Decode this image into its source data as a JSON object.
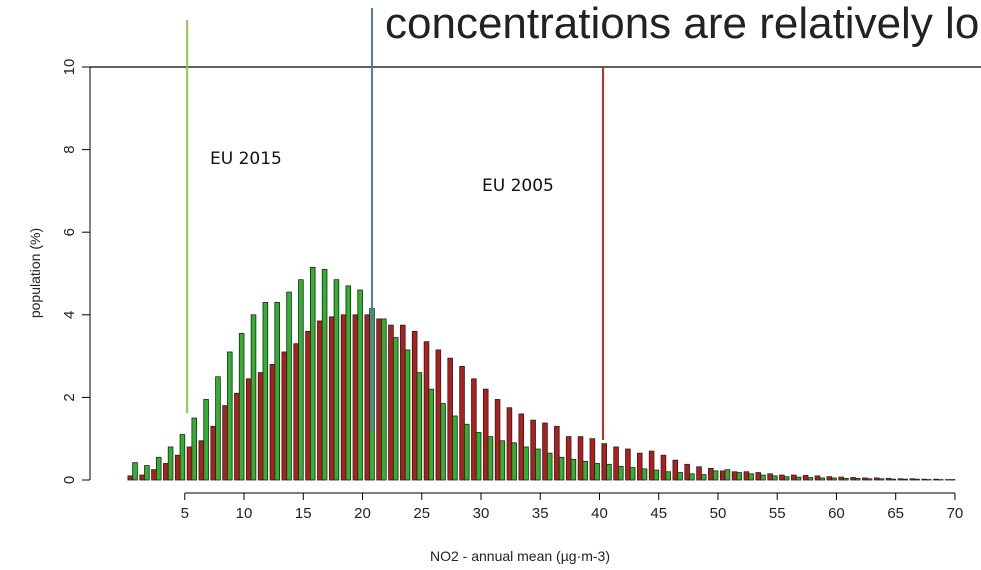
{
  "chart_data": {
    "type": "bar",
    "title": "concentrations are relatively lo",
    "x_label": "NO2 - annual mean (µg·m-3)",
    "y_label": "population (%)",
    "annotations": [
      "EU 2015",
      "EU 2005"
    ],
    "x": [
      1,
      2,
      3,
      4,
      5,
      6,
      7,
      8,
      9,
      10,
      11,
      12,
      13,
      14,
      15,
      16,
      17,
      18,
      19,
      20,
      21,
      22,
      23,
      24,
      25,
      26,
      27,
      28,
      29,
      30,
      31,
      32,
      33,
      34,
      35,
      36,
      37,
      38,
      39,
      40,
      41,
      42,
      43,
      44,
      45,
      46,
      47,
      48,
      49,
      50,
      51,
      52,
      53,
      54,
      55,
      56,
      57,
      58,
      59,
      60,
      61,
      62,
      63,
      64,
      65,
      66,
      67,
      68,
      69,
      70
    ],
    "series": [
      {
        "color": "#b21d1d",
        "values": [
          0.1,
          0.12,
          0.25,
          0.4,
          0.6,
          0.8,
          0.95,
          1.3,
          1.8,
          2.1,
          2.45,
          2.6,
          2.8,
          3.1,
          3.3,
          3.6,
          3.85,
          3.95,
          4.0,
          4.0,
          4.0,
          3.9,
          3.75,
          3.75,
          3.6,
          3.35,
          3.15,
          2.95,
          2.75,
          2.45,
          2.2,
          1.95,
          1.75,
          1.6,
          1.45,
          1.38,
          1.3,
          1.05,
          1.05,
          1.0,
          0.88,
          0.8,
          0.75,
          0.65,
          0.7,
          0.6,
          0.48,
          0.38,
          0.32,
          0.28,
          0.22,
          0.2,
          0.2,
          0.18,
          0.15,
          0.12,
          0.12,
          0.11,
          0.1,
          0.08,
          0.07,
          0.06,
          0.05,
          0.05,
          0.04,
          0.03,
          0.03,
          0.02,
          0.02,
          0.01
        ]
      },
      {
        "color": "#2fb32f",
        "values": [
          0.42,
          0.35,
          0.55,
          0.8,
          1.1,
          1.5,
          1.95,
          2.5,
          3.1,
          3.55,
          4.0,
          4.3,
          4.3,
          4.55,
          4.85,
          5.15,
          5.1,
          4.85,
          4.7,
          4.6,
          4.15,
          3.9,
          3.45,
          3.15,
          2.6,
          2.2,
          1.85,
          1.55,
          1.35,
          1.15,
          1.05,
          0.95,
          0.9,
          0.8,
          0.75,
          0.65,
          0.55,
          0.5,
          0.45,
          0.4,
          0.38,
          0.33,
          0.3,
          0.27,
          0.24,
          0.2,
          0.18,
          0.15,
          0.13,
          0.22,
          0.25,
          0.18,
          0.15,
          0.12,
          0.1,
          0.08,
          0.07,
          0.06,
          0.05,
          0.05,
          0.04,
          0.04,
          0.03,
          0.03,
          0.02,
          0.02,
          0.02,
          0.01,
          0.01,
          0.01
        ]
      }
    ],
    "reference_lines": [
      {
        "x": 5.2,
        "color": "#8cc84b"
      },
      {
        "x": 20.8,
        "color": "#4a7ebb"
      },
      {
        "x": 40.3,
        "color": "#c0272d"
      }
    ],
    "xlim": [
      -3,
      72.2
    ],
    "ylim": [
      0,
      10
    ],
    "xticks": [
      5,
      10,
      15,
      20,
      25,
      30,
      35,
      40,
      45,
      50,
      55,
      60,
      65,
      70
    ],
    "yticks": [
      0,
      2,
      4,
      6,
      8,
      10
    ]
  }
}
